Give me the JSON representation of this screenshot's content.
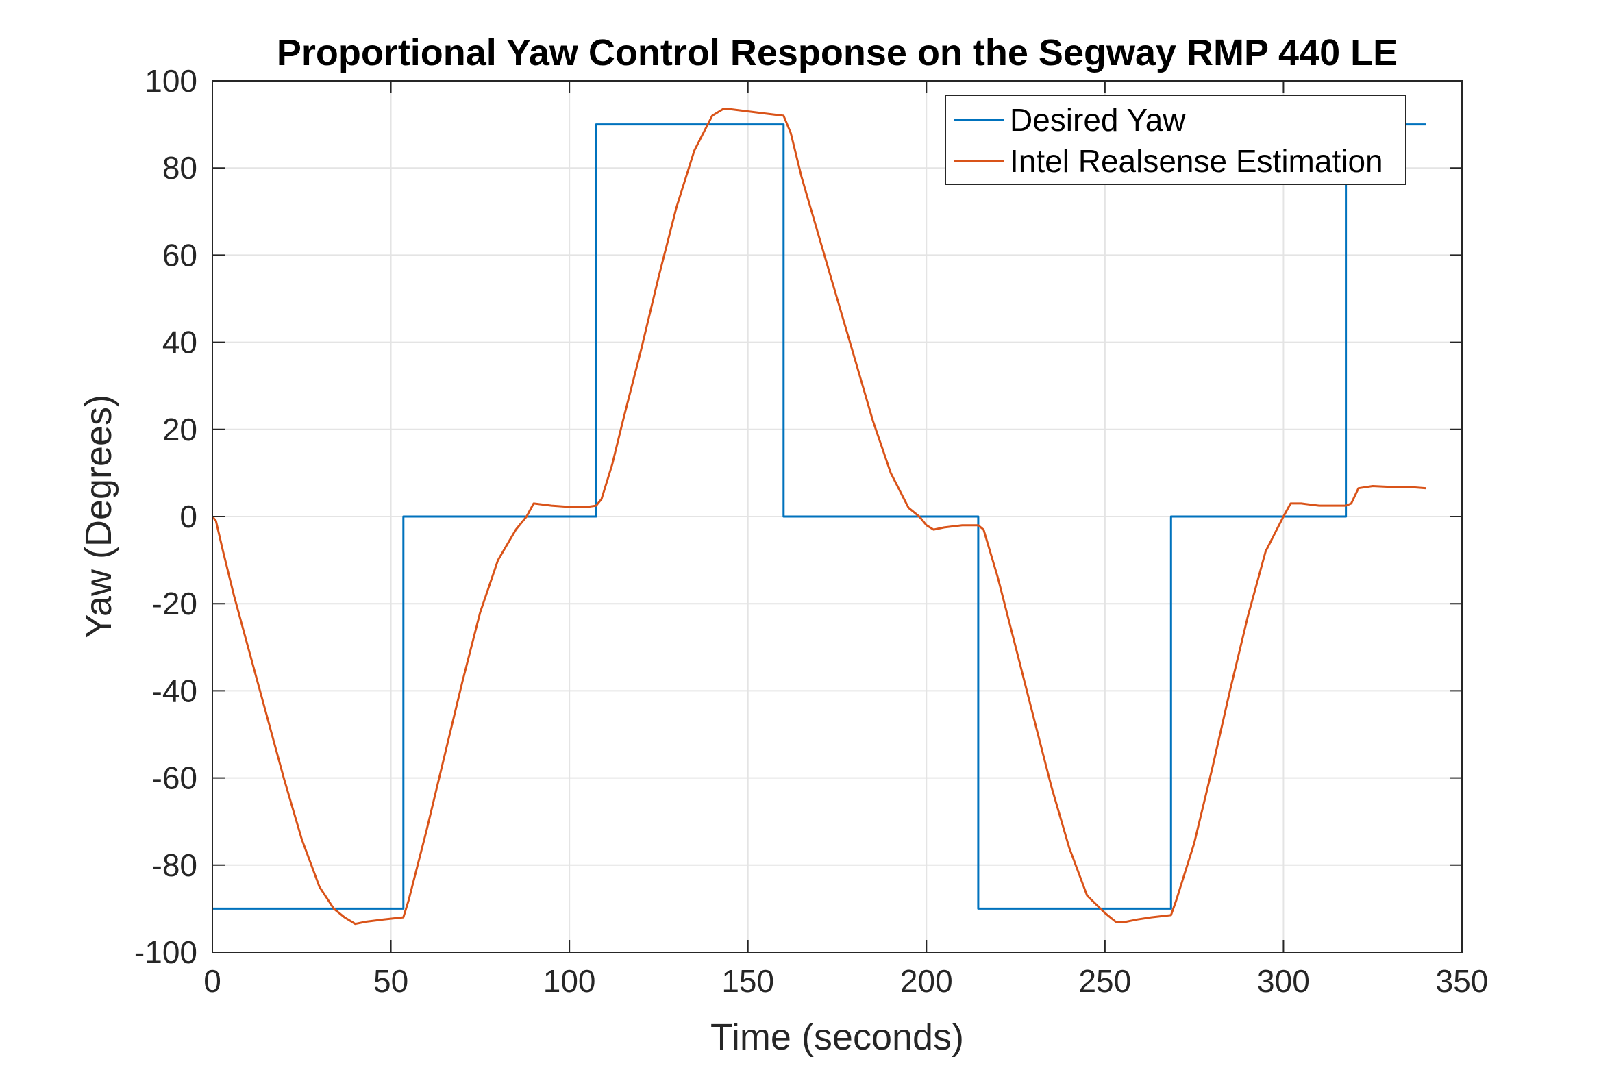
{
  "chart_data": {
    "type": "line",
    "title": "Proportional Yaw Control Response on the Segway RMP 440 LE",
    "xlabel": "Time (seconds)",
    "ylabel": "Yaw (Degrees)",
    "xlim": [
      0,
      350
    ],
    "ylim": [
      -100,
      100
    ],
    "xticks": [
      "0",
      "50",
      "100",
      "150",
      "200",
      "250",
      "300",
      "350"
    ],
    "yticks": [
      "-100",
      "-80",
      "-60",
      "-40",
      "-20",
      "0",
      "20",
      "40",
      "60",
      "80",
      "100"
    ],
    "grid": true,
    "legend_position": "top-right",
    "series": [
      {
        "name": "Desired Yaw",
        "color": "#0072BD",
        "x": [
          0,
          53.5,
          53.5,
          107.5,
          107.5,
          160,
          160,
          214.5,
          214.5,
          268.5,
          268.5,
          317.5,
          317.5,
          340
        ],
        "y": [
          -90,
          -90,
          0,
          0,
          90,
          90,
          0,
          0,
          -90,
          -90,
          0,
          0,
          90,
          90
        ]
      },
      {
        "name": "Intel Realsense Estimation",
        "color": "#D95319",
        "x": [
          0,
          1,
          3,
          6,
          10,
          15,
          20,
          25,
          30,
          34,
          37,
          40,
          43,
          48,
          53.5,
          55,
          60,
          65,
          70,
          75,
          80,
          85,
          88,
          90,
          95,
          100,
          105,
          107.5,
          109,
          112,
          115,
          120,
          125,
          130,
          135,
          140,
          143,
          145,
          150,
          155,
          160,
          162,
          165,
          170,
          175,
          180,
          185,
          190,
          195,
          198,
          200,
          202,
          205,
          210,
          214.5,
          216,
          220,
          225,
          230,
          235,
          240,
          245,
          250,
          253,
          256,
          259,
          263,
          268.5,
          270,
          275,
          280,
          285,
          290,
          295,
          300,
          302,
          305,
          310,
          315,
          317.5,
          319,
          321,
          325,
          330,
          335,
          340
        ],
        "y": [
          0,
          -1,
          -8,
          -18,
          -30,
          -45,
          -60,
          -74,
          -85,
          -90,
          -92,
          -93.5,
          -93,
          -92.5,
          -92,
          -88,
          -72,
          -55,
          -38,
          -22,
          -10,
          -3,
          0,
          3,
          2.5,
          2.2,
          2.2,
          2.5,
          4,
          12,
          22,
          38,
          55,
          71,
          84,
          92,
          93.5,
          93.5,
          93,
          92.5,
          92,
          88,
          78,
          64,
          50,
          36,
          22,
          10,
          2,
          0,
          -2,
          -3,
          -2.5,
          -2,
          -2,
          -3,
          -14,
          -30,
          -46,
          -62,
          -76,
          -87,
          -91,
          -93,
          -93,
          -92.5,
          -92,
          -91.5,
          -88,
          -75,
          -58,
          -40,
          -23,
          -8,
          0,
          3,
          3,
          2.5,
          2.5,
          2.5,
          3,
          6.5,
          7,
          6.8,
          6.8,
          6.5
        ]
      }
    ]
  }
}
